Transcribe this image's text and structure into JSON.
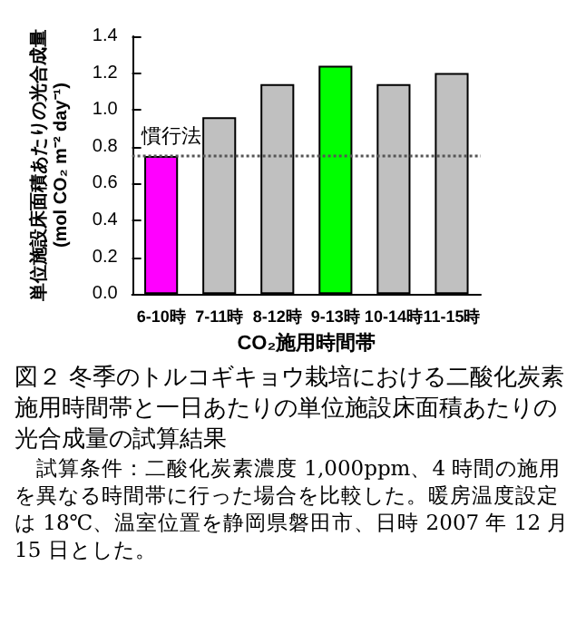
{
  "chart_data": {
    "type": "bar",
    "xlabel": "CO₂施用時間帯",
    "ylabel": "単位施設床面積あたりの光合成量 (mol CO₂ m⁻² day⁻¹)",
    "categories": [
      "6-10時",
      "7-11時",
      "8-12時",
      "9-13時",
      "10-14時",
      "11-15時"
    ],
    "values": [
      0.75,
      0.96,
      1.14,
      1.24,
      1.14,
      1.2
    ],
    "colors": [
      "#ff00ff",
      "#c0c0c0",
      "#c0c0c0",
      "#00ff00",
      "#c0c0c0",
      "#c0c0c0"
    ],
    "ylim": [
      0,
      1.4
    ],
    "yticks": [
      {
        "value": 0,
        "label": "0.0"
      },
      {
        "value": 0.2,
        "label": "0.2"
      },
      {
        "value": 0.4,
        "label": "0.4"
      },
      {
        "value": 0.6,
        "label": "0.6"
      },
      {
        "value": 0.8,
        "label": "0.8"
      },
      {
        "value": 1,
        "label": "1.0"
      },
      {
        "value": 1.2,
        "label": "1.2"
      },
      {
        "value": 1.4,
        "label": "1.4"
      }
    ],
    "grid": false,
    "ref_lines": [
      {
        "axis": "y",
        "value": 0.75,
        "label": "慣行法",
        "color": "#555555",
        "line_style": "dotted"
      }
    ],
    "annotations": [
      "図２ 冬季のトルコギキョウ栽培における二酸化炭素施用時間帯と一日あたりの単位施設床面積あたりの光合成量の試算結果",
      "　試算条件：二酸化炭素濃度 1,000ppm、4 時間の施用を異なる時間帯に行った場合を比較した。暖房温度設定は 18℃、温室位置を静岡県磐田市、日時 2007 年 12 月 15 日とした。"
    ]
  }
}
